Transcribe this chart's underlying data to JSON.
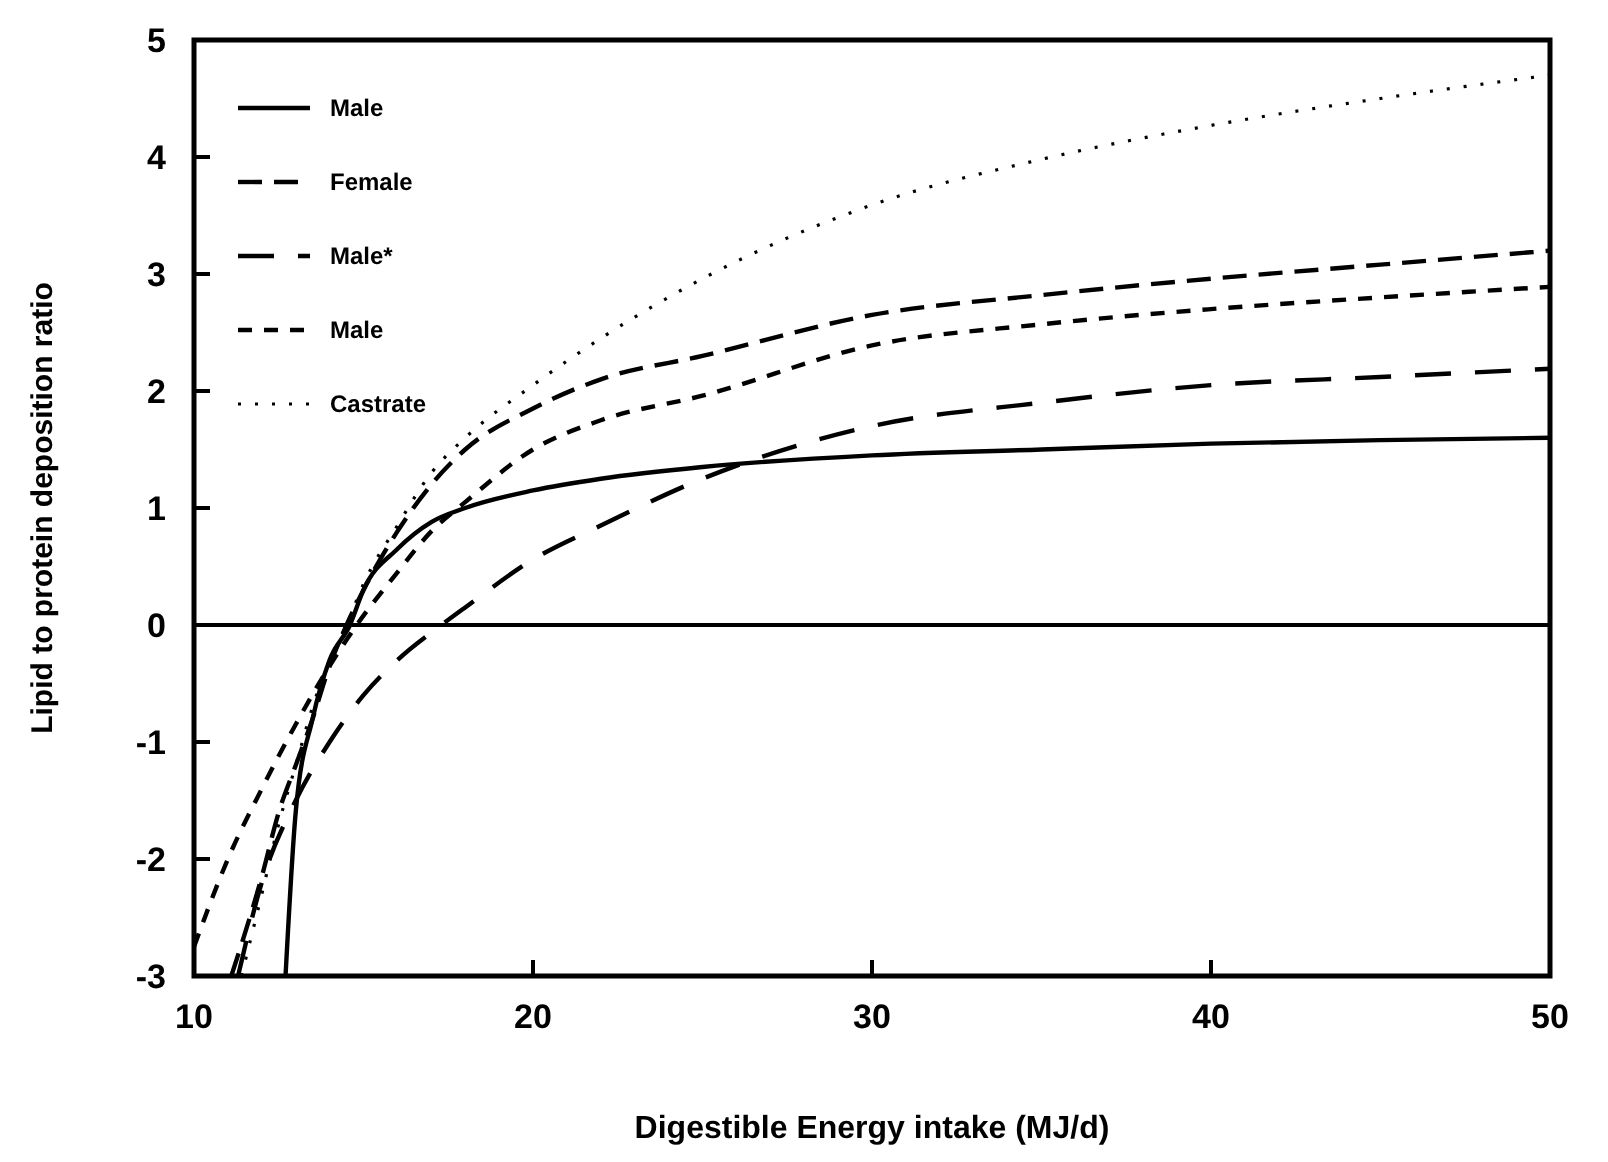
{
  "chart_data": {
    "type": "line",
    "xlabel": "Digestible Energy intake (MJ/d)",
    "ylabel": "Lipid to protein deposition ratio",
    "xlim": [
      10,
      50
    ],
    "ylim": [
      -3,
      5
    ],
    "xticks": [
      10,
      20,
      30,
      40,
      50
    ],
    "yticks": [
      -3,
      -2,
      -1,
      0,
      1,
      2,
      3,
      4,
      5
    ],
    "grid": false,
    "legend": "top left",
    "ref_lines": [
      {
        "axis": "y",
        "value": 0,
        "color": "#000000",
        "line_style": "solid"
      }
    ],
    "series": [
      {
        "name": "Male",
        "color": "#000000",
        "line_style": "solid",
        "x": [
          12.7,
          13,
          13.5,
          14,
          14.6,
          15,
          16,
          17,
          18,
          20,
          22,
          25,
          30,
          35,
          40,
          45,
          50
        ],
        "values": [
          -3,
          -1.6,
          -0.8,
          -0.3,
          0,
          0.3,
          0.65,
          0.88,
          1.0,
          1.15,
          1.25,
          1.35,
          1.45,
          1.5,
          1.55,
          1.58,
          1.6
        ]
      },
      {
        "name": "Female",
        "color": "#000000",
        "line_style": "dashed",
        "x": [
          11.1,
          12,
          12.5,
          13,
          13.5,
          14,
          14.5,
          15,
          16,
          17,
          18,
          20,
          22,
          25,
          30,
          35,
          40,
          45,
          50
        ],
        "values": [
          -3,
          -2.15,
          -1.6,
          -1.2,
          -0.8,
          -0.35,
          0,
          0.3,
          0.8,
          1.2,
          1.5,
          1.85,
          2.1,
          2.3,
          2.65,
          2.82,
          2.96,
          3.08,
          3.2
        ]
      },
      {
        "name": "Male*",
        "color": "#000000",
        "line_style": "dashed",
        "x": [
          11.3,
          12,
          13,
          14,
          15,
          16,
          17.3,
          18,
          20,
          22,
          25,
          30,
          35,
          40,
          45,
          50
        ],
        "values": [
          -3,
          -2.2,
          -1.5,
          -1.0,
          -0.6,
          -0.3,
          0,
          0.15,
          0.56,
          0.85,
          1.25,
          1.7,
          1.9,
          2.05,
          2.12,
          2.19
        ]
      },
      {
        "name": "Male",
        "color": "#000000",
        "line_style": "dashed",
        "x": [
          10,
          11,
          12,
          13,
          14,
          14.8,
          16,
          17,
          18,
          20,
          22,
          25,
          30,
          35,
          40,
          45,
          50
        ],
        "values": [
          -2.75,
          -2.0,
          -1.4,
          -0.85,
          -0.35,
          0,
          0.45,
          0.8,
          1.05,
          1.5,
          1.75,
          1.96,
          2.39,
          2.57,
          2.7,
          2.8,
          2.89
        ]
      },
      {
        "name": "Castrate",
        "color": "#000000",
        "line_style": "dotted",
        "x": [
          11.4,
          12,
          12.5,
          13,
          13.5,
          14,
          14.5,
          15,
          16,
          17,
          18,
          20,
          22,
          25,
          30,
          35,
          40,
          45,
          50
        ],
        "values": [
          -3,
          -2.3,
          -1.7,
          -1.2,
          -0.7,
          -0.3,
          0,
          0.35,
          0.85,
          1.3,
          1.6,
          2.05,
          2.45,
          2.96,
          3.59,
          3.98,
          4.27,
          4.5,
          4.7
        ]
      }
    ]
  }
}
